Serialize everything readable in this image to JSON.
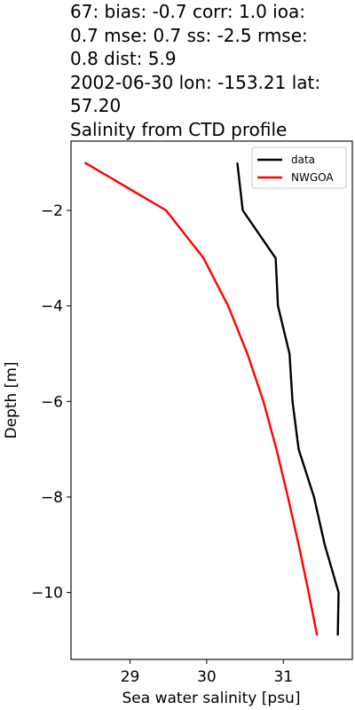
{
  "title_lines": [
    "67: bias: -0.7  corr: 1.0  ioa:",
    "0.7  mse: 0.7  ss: -2.5  rmse:",
    "0.8  dist: 5.9",
    "2002-06-30 lon: -153.21 lat:",
    "57.20",
    "Salinity from CTD profile"
  ],
  "chart_data": {
    "type": "line",
    "title": "67: bias: -0.7  corr: 1.0  ioa: 0.7  mse: 0.7  ss: -2.5  rmse: 0.8  dist: 5.9 2002-06-30 lon: -153.21 lat: 57.20 Salinity from CTD profile",
    "xlabel": "Sea water salinity [psu]",
    "ylabel": "Depth [m]",
    "xlim": [
      28.23,
      31.9
    ],
    "ylim": [
      -11.4,
      -0.55
    ],
    "xticks": [
      29,
      30,
      31
    ],
    "xtick_labels": [
      "29",
      "30",
      "31"
    ],
    "yticks": [
      -2,
      -4,
      -6,
      -8,
      -10
    ],
    "ytick_labels": [
      "−2",
      "−4",
      "−6",
      "−8",
      "−10"
    ],
    "grid": false,
    "legend_position": "top-right",
    "series": [
      {
        "name": "data",
        "color": "#000000",
        "points": [
          {
            "x": 30.4,
            "y": -1.0
          },
          {
            "x": 30.47,
            "y": -2.0
          },
          {
            "x": 30.9,
            "y": -3.0
          },
          {
            "x": 30.93,
            "y": -4.0
          },
          {
            "x": 31.08,
            "y": -5.0
          },
          {
            "x": 31.12,
            "y": -6.0
          },
          {
            "x": 31.2,
            "y": -7.0
          },
          {
            "x": 31.4,
            "y": -8.0
          },
          {
            "x": 31.54,
            "y": -9.0
          },
          {
            "x": 31.72,
            "y": -10.0
          },
          {
            "x": 31.71,
            "y": -10.9
          }
        ]
      },
      {
        "name": "NWGOA",
        "color": "#ff0000",
        "points": [
          {
            "x": 28.41,
            "y": -1.0
          },
          {
            "x": 29.47,
            "y": -2.0
          },
          {
            "x": 29.96,
            "y": -3.0
          },
          {
            "x": 30.28,
            "y": -4.0
          },
          {
            "x": 30.53,
            "y": -5.0
          },
          {
            "x": 30.74,
            "y": -6.0
          },
          {
            "x": 30.91,
            "y": -7.0
          },
          {
            "x": 31.06,
            "y": -8.0
          },
          {
            "x": 31.2,
            "y": -9.0
          },
          {
            "x": 31.33,
            "y": -10.0
          },
          {
            "x": 31.44,
            "y": -10.9
          }
        ]
      }
    ]
  }
}
